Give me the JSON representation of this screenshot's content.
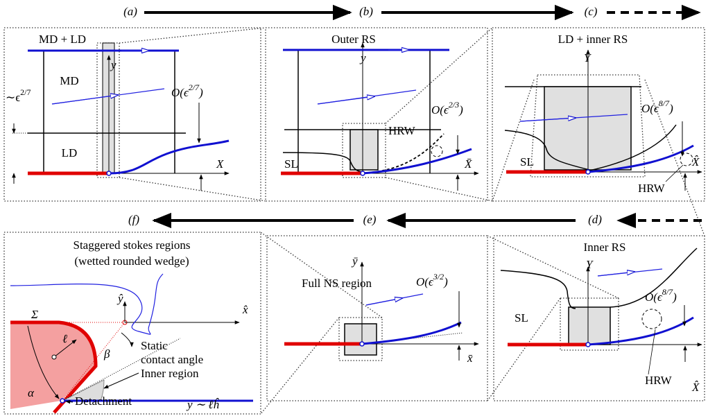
{
  "flow": {
    "a": "(a)",
    "b": "(b)",
    "c": "(c)",
    "d": "(d)",
    "e": "(e)",
    "f": "(f)"
  },
  "panel_a": {
    "title": "MD + LD",
    "md": "MD",
    "ld": "LD",
    "y": "y",
    "thick": [
      "∼ϵ",
      "2/7"
    ],
    "order": [
      "O(ϵ",
      "2/7",
      ")"
    ],
    "x": "X"
  },
  "panel_b": {
    "title": "Outer RS",
    "y": "y",
    "hrw": "HRW",
    "order": [
      "O(ϵ",
      "2/3",
      ")"
    ],
    "sl": "SL",
    "x": "X̄"
  },
  "panel_c": {
    "title": "LD + inner RS",
    "y": "Y",
    "order": [
      "O(ϵ",
      "8/7",
      ")"
    ],
    "sl": "SL",
    "hrw": "HRW",
    "x": "X̂"
  },
  "panel_d": {
    "title": "Inner RS",
    "y": "Y",
    "sl": "SL",
    "order": [
      "O(ϵ",
      "8/7",
      ")"
    ],
    "hrw": "HRW",
    "x": "X̂"
  },
  "panel_e": {
    "title": "Full NS region",
    "y": "ȳ",
    "order": [
      "O(ϵ",
      "3/2",
      ")"
    ],
    "x": "x̄"
  },
  "panel_f": {
    "title": [
      "Staggered stokes regions",
      "(wetted rounded wedge)"
    ],
    "sigma": "Σ",
    "y": "ŷ",
    "x": "x̂",
    "ell": "ℓ",
    "beta": "β",
    "alpha": "α",
    "angle": [
      "Static",
      "contact angle"
    ],
    "inner": "Inner region",
    "detach": "Detachment",
    "scale": "y ∼ ℓĥ"
  }
}
